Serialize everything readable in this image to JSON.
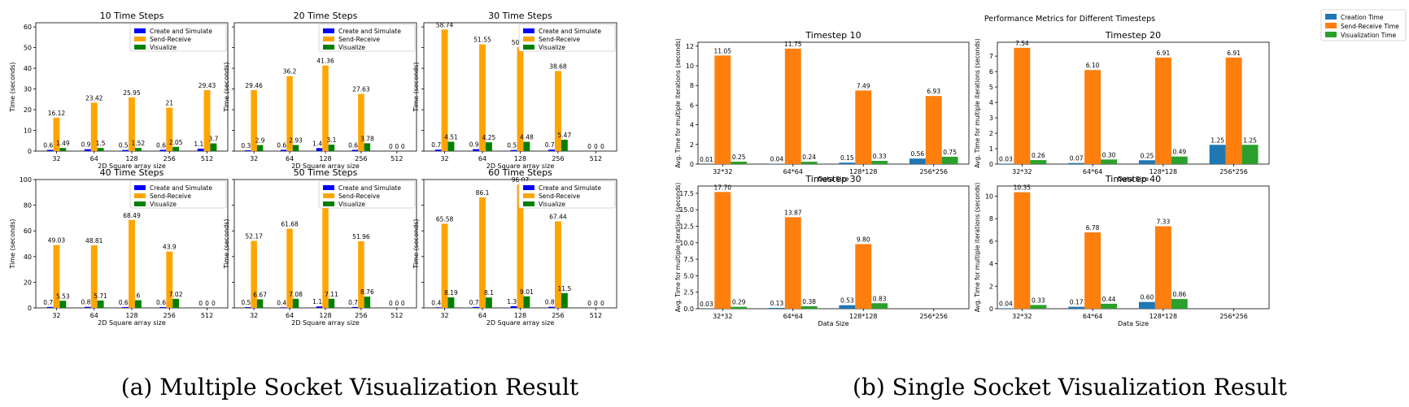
{
  "captions": {
    "a": "(a) Multiple Socket Visualization Result",
    "b": "(b) Single Socket Visualization Result"
  },
  "colors": {
    "left": [
      "#0000ff",
      "#ffa500",
      "#008000"
    ],
    "right": [
      "#1f77b4",
      "#ff7f0e",
      "#2ca02c"
    ]
  },
  "right_title": "Performance Metrics for Different Timesteps",
  "right_legend": [
    "Creation Time",
    "Send-Receive Time",
    "Visualization Time"
  ],
  "chart_data": [
    {
      "type": "bar",
      "title": "10 Time Steps",
      "categories": [
        "32",
        "64",
        "128",
        "256",
        "512"
      ],
      "xlabel": "2D Square array size",
      "ylabel": "Time (seconds)",
      "ylim": [
        0,
        62
      ],
      "yticks": [
        0,
        10,
        20,
        30,
        40,
        50,
        60
      ],
      "legend": "top-right",
      "series": [
        {
          "name": "Create and Simulate",
          "values": [
            0.61,
            0.93,
            0.53,
            0.64,
            1.16
          ]
        },
        {
          "name": "Send-Receive",
          "values": [
            16.12,
            23.42,
            25.95,
            21.0,
            29.43
          ]
        },
        {
          "name": "Visualize",
          "values": [
            1.49,
            1.5,
            1.52,
            2.05,
            3.7
          ]
        }
      ]
    },
    {
      "type": "bar",
      "title": "20 Time Steps",
      "categories": [
        "32",
        "64",
        "128",
        "256",
        "512"
      ],
      "xlabel": "2D Square array size",
      "ylabel": "Time (seconds)",
      "ylim": [
        0,
        62
      ],
      "yticks": [
        0,
        10,
        20,
        30,
        40,
        50,
        60
      ],
      "legend": "top-right",
      "series": [
        {
          "name": "Create and Simulate",
          "values": [
            0.38,
            0.61,
            1.46,
            0.62,
            0.0
          ]
        },
        {
          "name": "Send-Receive",
          "values": [
            29.46,
            36.2,
            41.36,
            27.63,
            0.0
          ]
        },
        {
          "name": "Visualize",
          "values": [
            2.9,
            2.93,
            3.1,
            3.78,
            0.0
          ]
        }
      ]
    },
    {
      "type": "bar",
      "title": "30 Time Steps",
      "categories": [
        "32",
        "64",
        "128",
        "256",
        "512"
      ],
      "xlabel": "2D Square array size",
      "ylabel": "Time (seconds)",
      "ylim": [
        0,
        62
      ],
      "yticks": [
        0,
        10,
        20,
        30,
        40,
        50,
        60
      ],
      "legend": "top-right",
      "series": [
        {
          "name": "Create and Simulate",
          "values": [
            0.72,
            0.93,
            0.52,
            0.71,
            0.0
          ]
        },
        {
          "name": "Send-Receive",
          "values": [
            58.74,
            51.55,
            50.26,
            38.68,
            0.0
          ]
        },
        {
          "name": "Visualize",
          "values": [
            4.51,
            4.25,
            4.48,
            5.47,
            0.0
          ]
        }
      ]
    },
    {
      "type": "bar",
      "title": "40 Time Steps",
      "categories": [
        "32",
        "64",
        "128",
        "256",
        "512"
      ],
      "xlabel": "2D Square array size",
      "ylabel": "Time (seconds)",
      "ylim": [
        0,
        100
      ],
      "yticks": [
        0,
        20,
        40,
        60,
        80,
        100
      ],
      "legend": "top-right",
      "series": [
        {
          "name": "Create and Simulate",
          "values": [
            0.73,
            0.82,
            0.62,
            0.63,
            0.0
          ]
        },
        {
          "name": "Send-Receive",
          "values": [
            49.03,
            48.81,
            68.49,
            43.9,
            0.0
          ]
        },
        {
          "name": "Visualize",
          "values": [
            5.53,
            5.71,
            6.0,
            7.02,
            0.0
          ]
        }
      ]
    },
    {
      "type": "bar",
      "title": "50 Time Steps",
      "categories": [
        "32",
        "64",
        "128",
        "256",
        "512"
      ],
      "xlabel": "2D Square array size",
      "ylabel": "Time (seconds)",
      "ylim": [
        0,
        100
      ],
      "yticks": [
        0,
        20,
        40,
        60,
        80,
        100
      ],
      "legend": "top-right",
      "series": [
        {
          "name": "Create and Simulate",
          "values": [
            0.58,
            0.47,
            1.14,
            0.71,
            0.0
          ]
        },
        {
          "name": "Send-Receive",
          "values": [
            52.17,
            61.68,
            89.3,
            51.96,
            0.0
          ]
        },
        {
          "name": "Visualize",
          "values": [
            6.67,
            7.08,
            7.11,
            8.76,
            0.0
          ]
        }
      ]
    },
    {
      "type": "bar",
      "title": "60 Time Steps",
      "categories": [
        "32",
        "64",
        "128",
        "256",
        "512"
      ],
      "xlabel": "2D Square array size",
      "ylabel": "Time (seconds)",
      "ylim": [
        0,
        100
      ],
      "yticks": [
        0,
        20,
        40,
        60,
        80,
        100
      ],
      "legend": "top-right",
      "series": [
        {
          "name": "Create and Simulate",
          "values": [
            0.45,
            0.72,
            1.31,
            0.84,
            0.0
          ]
        },
        {
          "name": "Send-Receive",
          "values": [
            65.58,
            86.1,
            96.07,
            67.44,
            0.0
          ]
        },
        {
          "name": "Visualize",
          "values": [
            8.19,
            8.1,
            9.01,
            11.5,
            0.0
          ]
        }
      ]
    },
    {
      "type": "bar",
      "title": "Timestep 10",
      "categories": [
        "32*32",
        "64*64",
        "128*128",
        "256*256"
      ],
      "xlabel": "Data Size",
      "ylabel": "Avg. Time for multiple iterations (seconds)",
      "ylim": [
        0,
        12.4
      ],
      "yticks": [
        0,
        2,
        4,
        6,
        8,
        10,
        12
      ],
      "decimals": 2,
      "series": [
        {
          "name": "Creation Time",
          "values": [
            0.01,
            0.04,
            0.15,
            0.56
          ]
        },
        {
          "name": "Send-Receive Time",
          "values": [
            11.05,
            11.75,
            7.49,
            6.93
          ]
        },
        {
          "name": "Visualization Time",
          "values": [
            0.25,
            0.24,
            0.33,
            0.75
          ]
        }
      ]
    },
    {
      "type": "bar",
      "title": "Timestep 20",
      "categories": [
        "32*32",
        "64*64",
        "128*128",
        "256*256"
      ],
      "xlabel": "Data Size",
      "ylabel": "Avg. Time for multiple iterations (seconds)",
      "ylim": [
        0,
        7.9
      ],
      "yticks": [
        0,
        1,
        2,
        3,
        4,
        5,
        6,
        7
      ],
      "decimals": 2,
      "series": [
        {
          "name": "Creation Time",
          "values": [
            0.03,
            0.07,
            0.25,
            1.25
          ]
        },
        {
          "name": "Send-Receive Time",
          "values": [
            7.54,
            6.1,
            6.91,
            6.91
          ]
        },
        {
          "name": "Visualization Time",
          "values": [
            0.26,
            0.3,
            0.49,
            1.25
          ]
        }
      ]
    },
    {
      "type": "bar",
      "title": "Timestep 30",
      "categories": [
        "32*32",
        "64*64",
        "128*128",
        "256*256"
      ],
      "xlabel": "Data Size",
      "ylabel": "Avg. Time for multiple iterations (seconds)",
      "ylim": [
        0,
        18.6
      ],
      "yticks": [
        0,
        2.5,
        5.0,
        7.5,
        10.0,
        12.5,
        15.0,
        17.5
      ],
      "ytickfmt": 1,
      "decimals": 2,
      "series": [
        {
          "name": "Creation Time",
          "values": [
            0.03,
            0.13,
            0.53,
            null
          ]
        },
        {
          "name": "Send-Receive Time",
          "values": [
            17.7,
            13.87,
            9.8,
            null
          ]
        },
        {
          "name": "Visualization Time",
          "values": [
            0.29,
            0.38,
            0.83,
            null
          ]
        }
      ]
    },
    {
      "type": "bar",
      "title": "Timestep 40",
      "categories": [
        "32*32",
        "64*64",
        "128*128",
        "256*256"
      ],
      "xlabel": "Data Size",
      "ylabel": "Avg. Time for multiple iterations (seconds)",
      "ylim": [
        0,
        10.9
      ],
      "yticks": [
        0,
        2,
        4,
        6,
        8,
        10
      ],
      "decimals": 2,
      "series": [
        {
          "name": "Creation Time",
          "values": [
            0.04,
            0.17,
            0.6,
            null
          ]
        },
        {
          "name": "Send-Receive Time",
          "values": [
            10.35,
            6.78,
            7.33,
            null
          ]
        },
        {
          "name": "Visualization Time",
          "values": [
            0.33,
            0.44,
            0.86,
            null
          ]
        }
      ]
    }
  ]
}
